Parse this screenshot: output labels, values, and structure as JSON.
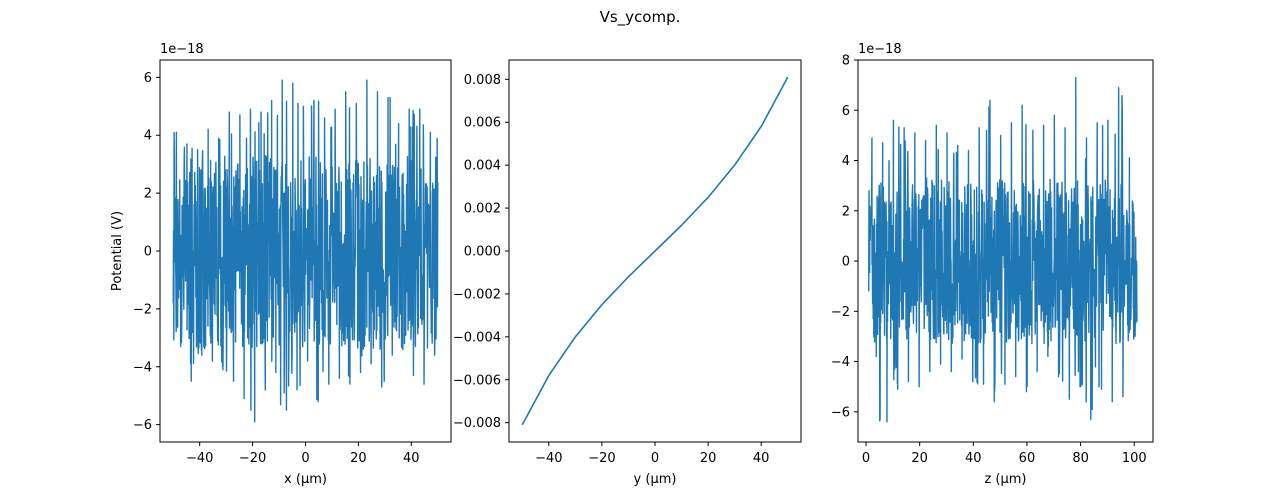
{
  "figure": {
    "suptitle": "Vs_ycomp."
  },
  "colors": {
    "line": "#1f77b4",
    "axes": "#000000",
    "background": "#ffffff"
  },
  "chart_data": [
    {
      "type": "line",
      "xlabel": "x (µm)",
      "ylabel": "Potential (V)",
      "offset_text": "1e−18",
      "xlim": [
        -55,
        55
      ],
      "ylim": [
        -6.6,
        6.6
      ],
      "xticks": [
        -40,
        -20,
        0,
        20,
        40
      ],
      "xtick_labels": [
        "−40",
        "−20",
        "0",
        "20",
        "40"
      ],
      "yticks": [
        -6,
        -4,
        -2,
        0,
        2,
        4,
        6
      ],
      "ytick_labels": [
        "−6",
        "−4",
        "−2",
        "0",
        "2",
        "4",
        "6"
      ],
      "grid": false,
      "series": [
        {
          "x_range": [
            -50,
            50
          ],
          "noise_band": [
            -3.4,
            3.3
          ],
          "envelope_max": [
            4.1,
            3.7,
            3.5,
            4.2,
            3.9,
            4.8,
            4.7,
            4.9,
            4.8,
            5.2,
            5.9,
            5.8,
            5.0,
            5.2,
            4.6,
            4.9,
            5.5,
            5.1,
            5.9,
            5.5,
            5.3,
            4.4,
            4.9,
            4.9,
            4.1
          ],
          "envelope_min": [
            -3.3,
            -4.5,
            -3.6,
            -3.8,
            -4.1,
            -4.5,
            -5.1,
            -5.9,
            -4.8,
            -4.2,
            -5.5,
            -4.8,
            -3.8,
            -5.2,
            -4.6,
            -4.4,
            -4.6,
            -4.2,
            -3.9,
            -4.7,
            -3.6,
            -3.4,
            -4.3,
            -4.6,
            -3.6
          ]
        }
      ]
    },
    {
      "type": "line",
      "xlabel": "y (µm)",
      "ylabel": "",
      "offset_text": "",
      "xlim": [
        -55,
        55
      ],
      "ylim": [
        -0.0089,
        0.0089
      ],
      "xticks": [
        -40,
        -20,
        0,
        20,
        40
      ],
      "xtick_labels": [
        "−40",
        "−20",
        "0",
        "20",
        "40"
      ],
      "yticks": [
        -0.008,
        -0.006,
        -0.004,
        -0.002,
        0.0,
        0.002,
        0.004,
        0.006,
        0.008
      ],
      "ytick_labels": [
        "−0.008",
        "−0.006",
        "−0.004",
        "−0.002",
        "0.000",
        "0.002",
        "0.004",
        "0.006",
        "0.008"
      ],
      "grid": false,
      "series": [
        {
          "x": [
            -50,
            -40,
            -30,
            -20,
            -10,
            0,
            10,
            20,
            30,
            40,
            50
          ],
          "y": [
            -0.0081,
            -0.0058,
            -0.004,
            -0.0025,
            -0.0012,
            0.0,
            0.0012,
            0.0025,
            0.004,
            0.0058,
            0.0081
          ]
        }
      ]
    },
    {
      "type": "line",
      "xlabel": "z (µm)",
      "ylabel": "",
      "offset_text": "1e−18",
      "xlim": [
        -3,
        107
      ],
      "ylim": [
        -7.2,
        8.0
      ],
      "xticks": [
        0,
        20,
        40,
        60,
        80,
        100
      ],
      "xtick_labels": [
        "0",
        "20",
        "40",
        "60",
        "80",
        "100"
      ],
      "yticks": [
        -6,
        -4,
        -2,
        0,
        2,
        4,
        6,
        8
      ],
      "ytick_labels": [
        "−6",
        "−4",
        "−2",
        "0",
        "2",
        "4",
        "6",
        "8"
      ],
      "grid": false,
      "series": [
        {
          "x_range": [
            1,
            101
          ],
          "noise_band": [
            -3.3,
            3.3
          ],
          "envelope_max": [
            4.9,
            4.7,
            5.6,
            5.3,
            5.1,
            4.8,
            5.4,
            5.1,
            4.6,
            4.4,
            5.3,
            6.4,
            5.0,
            5.5,
            6.2,
            5.2,
            5.4,
            5.8,
            5.3,
            7.3,
            4.9,
            5.5,
            5.6,
            6.9,
            4.1
          ],
          "envelope_min": [
            -3.8,
            -6.4,
            -5.1,
            -4.8,
            -5.0,
            -4.4,
            -4.1,
            -4.4,
            -3.9,
            -4.8,
            -4.9,
            -5.6,
            -4.9,
            -4.6,
            -5.2,
            -4.4,
            -3.8,
            -4.6,
            -5.5,
            -5.0,
            -6.3,
            -5.1,
            -5.6,
            -5.4,
            -3.1
          ]
        }
      ]
    }
  ]
}
